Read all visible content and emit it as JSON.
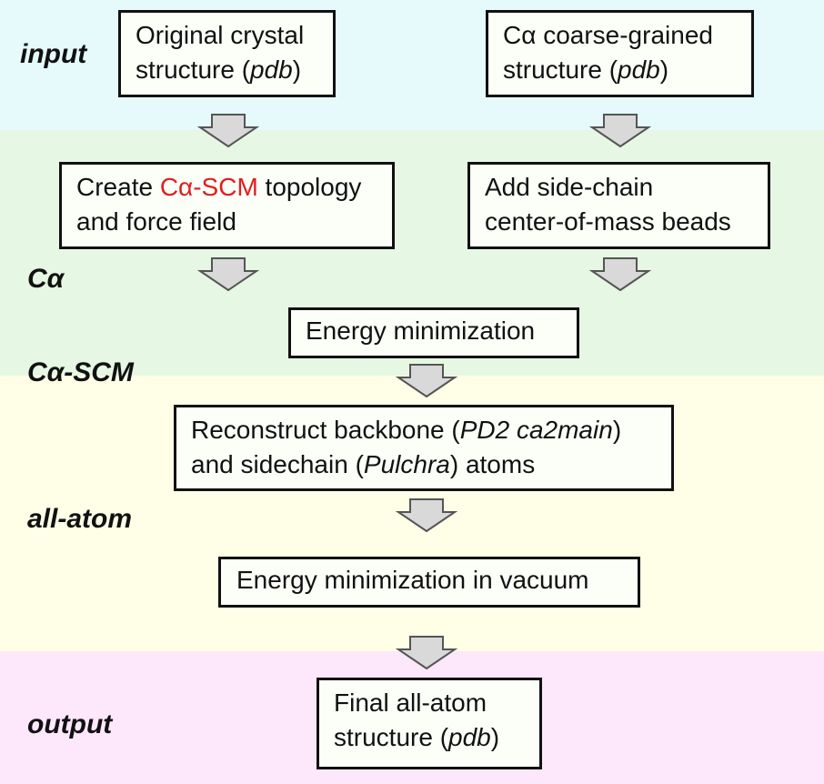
{
  "stages": {
    "input": "input",
    "ca": "Cα",
    "ca_scm": "Cα-SCM",
    "all_atom": "all-atom",
    "output": "output"
  },
  "boxes": {
    "original": {
      "line1": "Original crystal",
      "line2_a": "structure (",
      "line2_b": "pdb",
      "line2_c": ")"
    },
    "coarse": {
      "line1": "Cα coarse-grained",
      "line2_a": "structure (",
      "line2_b": "pdb",
      "line2_c": ")"
    },
    "create": {
      "part1": "Create ",
      "highlight": "Cα-SCM",
      "part2": " topology",
      "line2": "and force field"
    },
    "add_beads": {
      "line1": "Add side-chain",
      "line2": "center-of-mass beads"
    },
    "energy_min": {
      "text": "Energy minimization"
    },
    "reconstruct": {
      "l1_a": "Reconstruct backbone (",
      "l1_b": "PD2 ca2main",
      "l1_c": ")",
      "l2_a": "and sidechain (",
      "l2_b": "Pulchra",
      "l2_c": ") atoms"
    },
    "energy_vac": {
      "text": "Energy minimization in vacuum"
    },
    "final": {
      "line1": "Final all-atom",
      "line2_a": "structure (",
      "line2_b": "pdb",
      "line2_c": ")"
    }
  },
  "colors": {
    "highlight": "#e11d1d",
    "arrow_fill": "#d9d9d9",
    "arrow_stroke": "#555555"
  }
}
